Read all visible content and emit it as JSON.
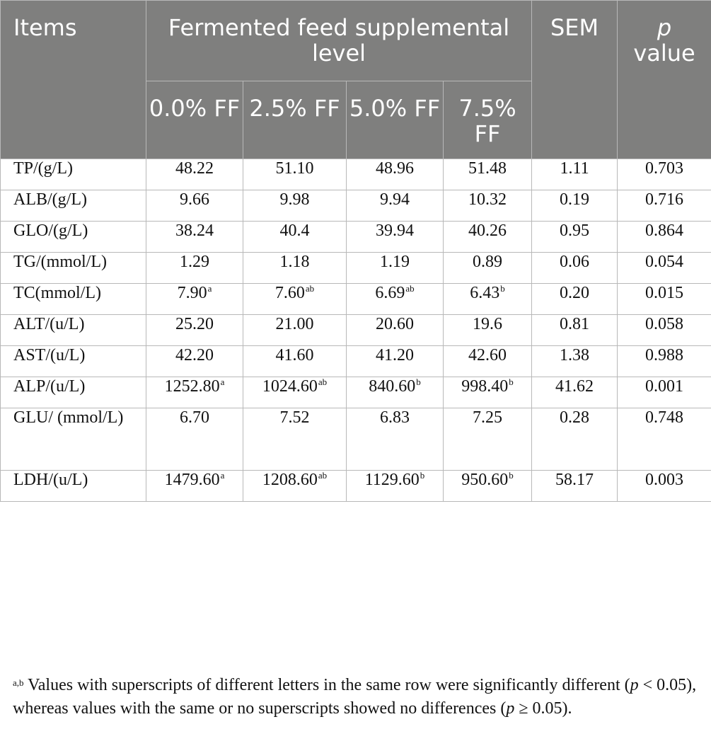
{
  "table": {
    "headers": {
      "items": "Items",
      "group": "Fermented feed supplemental level",
      "sem": "SEM",
      "p_italic": "p",
      "p_rest": "value",
      "levels": [
        "0.0% FF",
        "2.5% FF",
        "5.0% FF",
        "7.5% FF"
      ]
    },
    "rows": [
      {
        "label": "TP/(g/L)",
        "c0": "48.22",
        "s0": "",
        "c1": "51.10",
        "s1": "",
        "c2": "48.96",
        "s2": "",
        "c3": "51.48",
        "s3": "",
        "sem": "1.11",
        "p": "0.703"
      },
      {
        "label": "ALB/(g/L)",
        "c0": "9.66",
        "s0": "",
        "c1": "9.98",
        "s1": "",
        "c2": "9.94",
        "s2": "",
        "c3": "10.32",
        "s3": "",
        "sem": "0.19",
        "p": "0.716"
      },
      {
        "label": "GLO/(g/L)",
        "c0": "38.24",
        "s0": "",
        "c1": "40.4",
        "s1": "",
        "c2": "39.94",
        "s2": "",
        "c3": "40.26",
        "s3": "",
        "sem": "0.95",
        "p": "0.864"
      },
      {
        "label": "TG/(mmol/L)",
        "c0": "1.29",
        "s0": "",
        "c1": "1.18",
        "s1": "",
        "c2": "1.19",
        "s2": "",
        "c3": "0.89",
        "s3": "",
        "sem": "0.06",
        "p": "0.054"
      },
      {
        "label": "TC(mmol/L)",
        "c0": "7.90",
        "s0": "a",
        "c1": "7.60",
        "s1": "ab",
        "c2": "6.69",
        "s2": "ab",
        "c3": "6.43",
        "s3": "b",
        "sem": "0.20",
        "p": "0.015"
      },
      {
        "label": "ALT/(u/L)",
        "c0": "25.20",
        "s0": "",
        "c1": "21.00",
        "s1": "",
        "c2": "20.60",
        "s2": "",
        "c3": "19.6",
        "s3": "",
        "sem": "0.81",
        "p": "0.058"
      },
      {
        "label": "AST/(u/L)",
        "c0": "42.20",
        "s0": "",
        "c1": "41.60",
        "s1": "",
        "c2": "41.20",
        "s2": "",
        "c3": "42.60",
        "s3": "",
        "sem": "1.38",
        "p": "0.988"
      },
      {
        "label": "ALP/(u/L)",
        "c0": "1252.80",
        "s0": "a",
        "c1": "1024.60",
        "s1": "ab",
        "c2": "840.60",
        "s2": "b",
        "c3": "998.40",
        "s3": "b",
        "sem": "41.62",
        "p": "0.001"
      },
      {
        "label": "GLU/ (mmol/L)",
        "c0": "6.70",
        "s0": "",
        "c1": "7.52",
        "s1": "",
        "c2": "6.83",
        "s2": "",
        "c3": "7.25",
        "s3": "",
        "sem": "0.28",
        "p": "0.748"
      },
      {
        "label": "LDH/(u/L)",
        "c0": "1479.60",
        "s0": "a",
        "c1": "1208.60",
        "s1": "ab",
        "c2": "1129.60",
        "s2": "b",
        "c3": "950.60",
        "s3": "b",
        "sem": "58.17",
        "p": "0.003"
      }
    ]
  },
  "footnote": {
    "sup": "a,b",
    "text1": " Values with superscripts of different letters in the same row were significantly different (",
    "p1": "p",
    "text2": " < 0.05), whereas values with the same or no superscripts showed no differences (",
    "p2": "p",
    "text3": " ≥ 0.05)."
  }
}
